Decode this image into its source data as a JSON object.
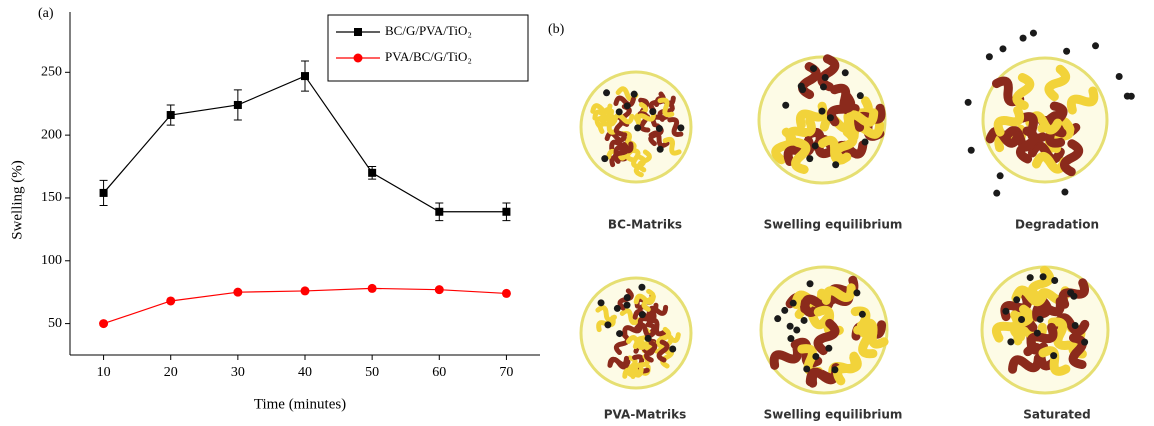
{
  "chart_data": {
    "type": "line",
    "panel_label": "(a)",
    "x_label": "Time  (minutes)",
    "y_label": "Swelling  (%)",
    "x": [
      10,
      20,
      30,
      40,
      50,
      60,
      70
    ],
    "series": [
      {
        "name": "BC/G/PVA/TiO₂",
        "color": "#000000",
        "marker": "square",
        "values": [
          154,
          216,
          224,
          247,
          170,
          139,
          139
        ],
        "errors": [
          10,
          8,
          12,
          12,
          5,
          7,
          7
        ]
      },
      {
        "name": "PVA/BC/G/TiO₂",
        "color": "#ff0000",
        "marker": "circle",
        "values": [
          50,
          68,
          75,
          76,
          78,
          77,
          74
        ]
      }
    ],
    "xlim": [
      5,
      75
    ],
    "xticks": [
      10,
      20,
      30,
      40,
      50,
      60,
      70
    ],
    "ylim": [
      25,
      298
    ],
    "yticks": [
      50,
      100,
      150,
      200,
      250
    ],
    "grid": false,
    "legend": "upper right"
  },
  "panel_b": {
    "label": "(b)",
    "captions": [
      "BC-Matriks",
      "Swelling equilibrium",
      "Degradation",
      "PVA-Matriks",
      "Swelling equilibrium",
      "Saturated"
    ]
  }
}
